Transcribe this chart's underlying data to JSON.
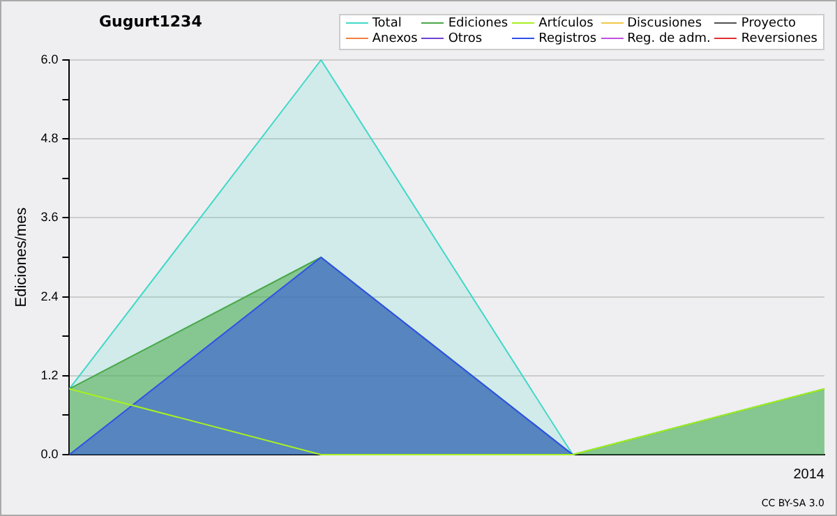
{
  "chart_data": {
    "type": "area",
    "title": "Gugurt1234",
    "ylabel": "Ediciones/mes",
    "annotations": [
      "CC BY-SA 3.0"
    ],
    "categories": [
      null,
      null,
      null,
      "2014"
    ],
    "ylim": [
      0,
      6
    ],
    "yticks": [
      {
        "value": 0,
        "label": "0.0"
      },
      {
        "value": 0.6,
        "label": null
      },
      {
        "value": 1.2,
        "label": "1.2"
      },
      {
        "value": 1.8,
        "label": null
      },
      {
        "value": 2.4,
        "label": "2.4"
      },
      {
        "value": 3,
        "label": null
      },
      {
        "value": 3.6,
        "label": "3.6"
      },
      {
        "value": 4.2,
        "label": null
      },
      {
        "value": 4.8,
        "label": "4.8"
      },
      {
        "value": 5.4,
        "label": null
      },
      {
        "value": 6,
        "label": "6.0"
      }
    ],
    "grid": "y",
    "legend": "top right",
    "marker": "none",
    "series": [
      {
        "name": "Total",
        "color": "#40d8c8",
        "values": [
          1,
          6,
          0,
          1
        ]
      },
      {
        "name": "Ediciones",
        "color": "#48a848",
        "values": [
          1,
          3,
          0,
          1
        ]
      },
      {
        "name": "Artículos",
        "color": "#a8f020",
        "type": "line",
        "values": [
          1,
          0,
          0,
          1
        ]
      },
      {
        "name": "Discusiones",
        "color": "#f0c848",
        "type": "line",
        "values": [
          null,
          null,
          null,
          null
        ]
      },
      {
        "name": "Proyecto",
        "color": "#505050",
        "type": "line",
        "values": [
          null,
          null,
          null,
          null
        ]
      },
      {
        "name": "Anexos",
        "color": "#f08040",
        "type": "line",
        "values": [
          null,
          null,
          null,
          null
        ]
      },
      {
        "name": "Otros",
        "color": "#7040d0",
        "type": "line",
        "values": [
          null,
          null,
          null,
          null
        ]
      },
      {
        "name": "Registros",
        "color": "#3050e8",
        "values": [
          0,
          3,
          0,
          null
        ]
      },
      {
        "name": "Reg. de adm.",
        "color": "#c050e0",
        "type": "line",
        "values": [
          null,
          null,
          null,
          null
        ]
      },
      {
        "name": "Reversiones",
        "color": "#e03030",
        "type": "line",
        "values": [
          null,
          null,
          null,
          null
        ]
      }
    ]
  }
}
